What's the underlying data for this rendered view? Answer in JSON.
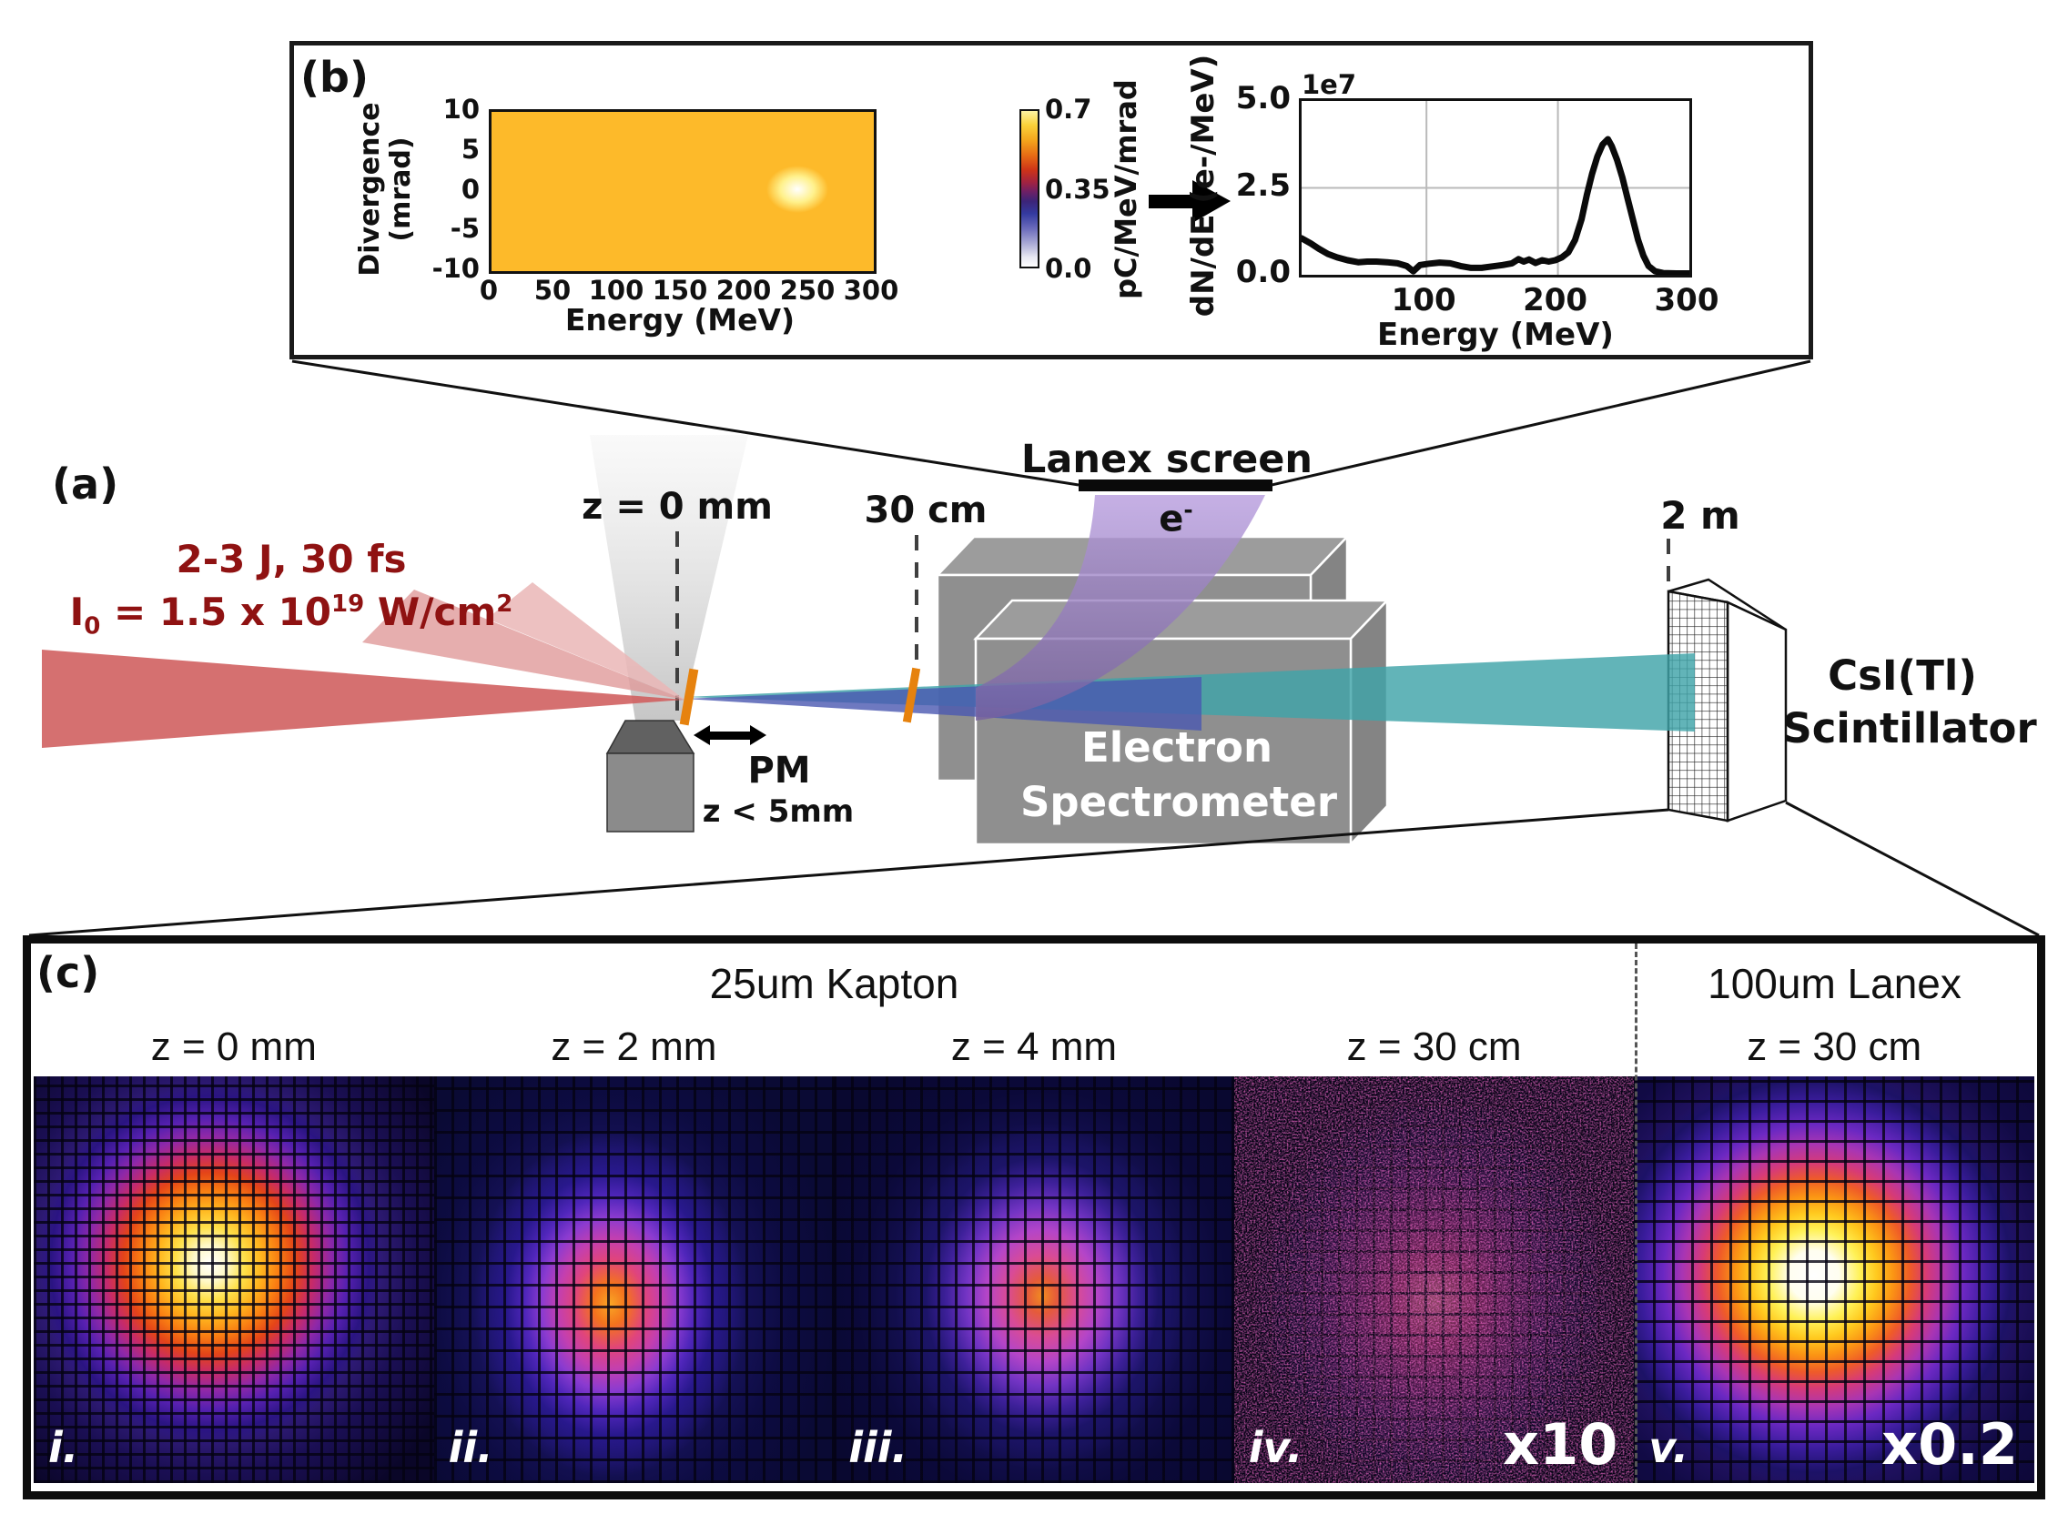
{
  "figure": {
    "panel_a_label": "(a)",
    "panel_b_label": "(b)",
    "panel_c_label": "(c)"
  },
  "colors": {
    "laser_red": "#d06060",
    "laser_text_red": "#8f1212",
    "beam_teal": "#3fa4a8",
    "beam_blue": "#4a58b0",
    "beam_purple": "#a78cd0",
    "foil_orange": "#e6820e"
  },
  "chart_data": [
    {
      "type": "heatmap",
      "title": "",
      "xlabel": "Energy (MeV)",
      "ylabel": "Divergence (mrad)",
      "xlim": [
        0,
        300
      ],
      "ylim": [
        -10,
        10
      ],
      "xticks": [
        0,
        50,
        100,
        150,
        200,
        250,
        300
      ],
      "yticks": [
        10,
        5,
        0,
        -5,
        -10
      ],
      "colorbar": {
        "label": "pC/MeV/mrad",
        "ticks": [
          "0.7",
          "0.35",
          "0.0"
        ],
        "tick_values": [
          0.7,
          0.35,
          0.0
        ],
        "range": [
          0.0,
          0.7
        ]
      },
      "features": [
        {
          "name": "electron-beam-spot",
          "energy_mev": 240,
          "divergence_mrad": 0.5,
          "peak_value_pC_per_MeV_mrad": 0.7
        },
        {
          "name": "low-energy-background",
          "energy_mev": 5,
          "divergence_mrad": 0
        }
      ]
    },
    {
      "type": "line",
      "title": "",
      "xlabel": "Energy (MeV)",
      "ylabel": "dN/dE (e-/MeV)",
      "exponent_label": "1e7",
      "xlim": [
        5,
        300
      ],
      "ylim_1e7": [
        0.0,
        5.0
      ],
      "xticks": [
        100,
        200,
        300
      ],
      "yticks": [
        "5.0",
        "2.5",
        "0.0"
      ],
      "ytick_values": [
        5.0,
        2.5,
        0.0
      ],
      "grid": true,
      "series": [
        {
          "name": "electron spectrum",
          "x": [
            5,
            12,
            18,
            25,
            32,
            40,
            48,
            55,
            62,
            70,
            78,
            85,
            90,
            95,
            102,
            110,
            118,
            126,
            134,
            142,
            150,
            158,
            165,
            170,
            174,
            178,
            183,
            188,
            193,
            198,
            203,
            208,
            213,
            218,
            222,
            226,
            230,
            234,
            238,
            241,
            245,
            249,
            253,
            257,
            261,
            265,
            269,
            274,
            280,
            290,
            300
          ],
          "y_1e7": [
            1.05,
            0.9,
            0.75,
            0.6,
            0.5,
            0.42,
            0.36,
            0.38,
            0.38,
            0.36,
            0.33,
            0.25,
            0.1,
            0.28,
            0.32,
            0.35,
            0.33,
            0.25,
            0.2,
            0.2,
            0.24,
            0.28,
            0.33,
            0.45,
            0.38,
            0.44,
            0.34,
            0.42,
            0.38,
            0.42,
            0.5,
            0.65,
            1.0,
            1.6,
            2.3,
            2.9,
            3.4,
            3.75,
            3.9,
            3.7,
            3.3,
            2.8,
            2.2,
            1.6,
            1.0,
            0.55,
            0.25,
            0.1,
            0.05,
            0.04,
            0.04
          ]
        }
      ]
    }
  ],
  "panel_a": {
    "laser_line1": "2-3 J, 30 fs",
    "laser_line2_parts": {
      "p1": "I",
      "sub0": "0",
      "p2": " = 1.5 x 10",
      "sup19": "19",
      "p3": " W/cm",
      "sup2": "2"
    },
    "z0_label": "z = 0 mm",
    "d30_label": "30 cm",
    "pm_label": "PM",
    "pm_sub_label": "z < 5mm",
    "lanex_label": "Lanex screen",
    "electron_parts": {
      "base": "e",
      "sup": "-"
    },
    "spectrometer_line1": "Electron",
    "spectrometer_line2": "Spectrometer",
    "d2m_label": "2 m",
    "csi_line1": "CsI(Tl)",
    "csi_line2": "Scintillator"
  },
  "panel_c": {
    "kapton_header": "25um Kapton",
    "lanex_header": "100um Lanex",
    "tiles": [
      {
        "z": "z = 0 mm",
        "roman": "i.",
        "mult": ""
      },
      {
        "z": "z = 2 mm",
        "roman": "ii.",
        "mult": ""
      },
      {
        "z": "z = 4 mm",
        "roman": "iii.",
        "mult": ""
      },
      {
        "z": "z = 30 cm",
        "roman": "iv.",
        "mult": "x10"
      },
      {
        "z": "z = 30 cm",
        "roman": "v.",
        "mult": "x0.2"
      }
    ]
  }
}
